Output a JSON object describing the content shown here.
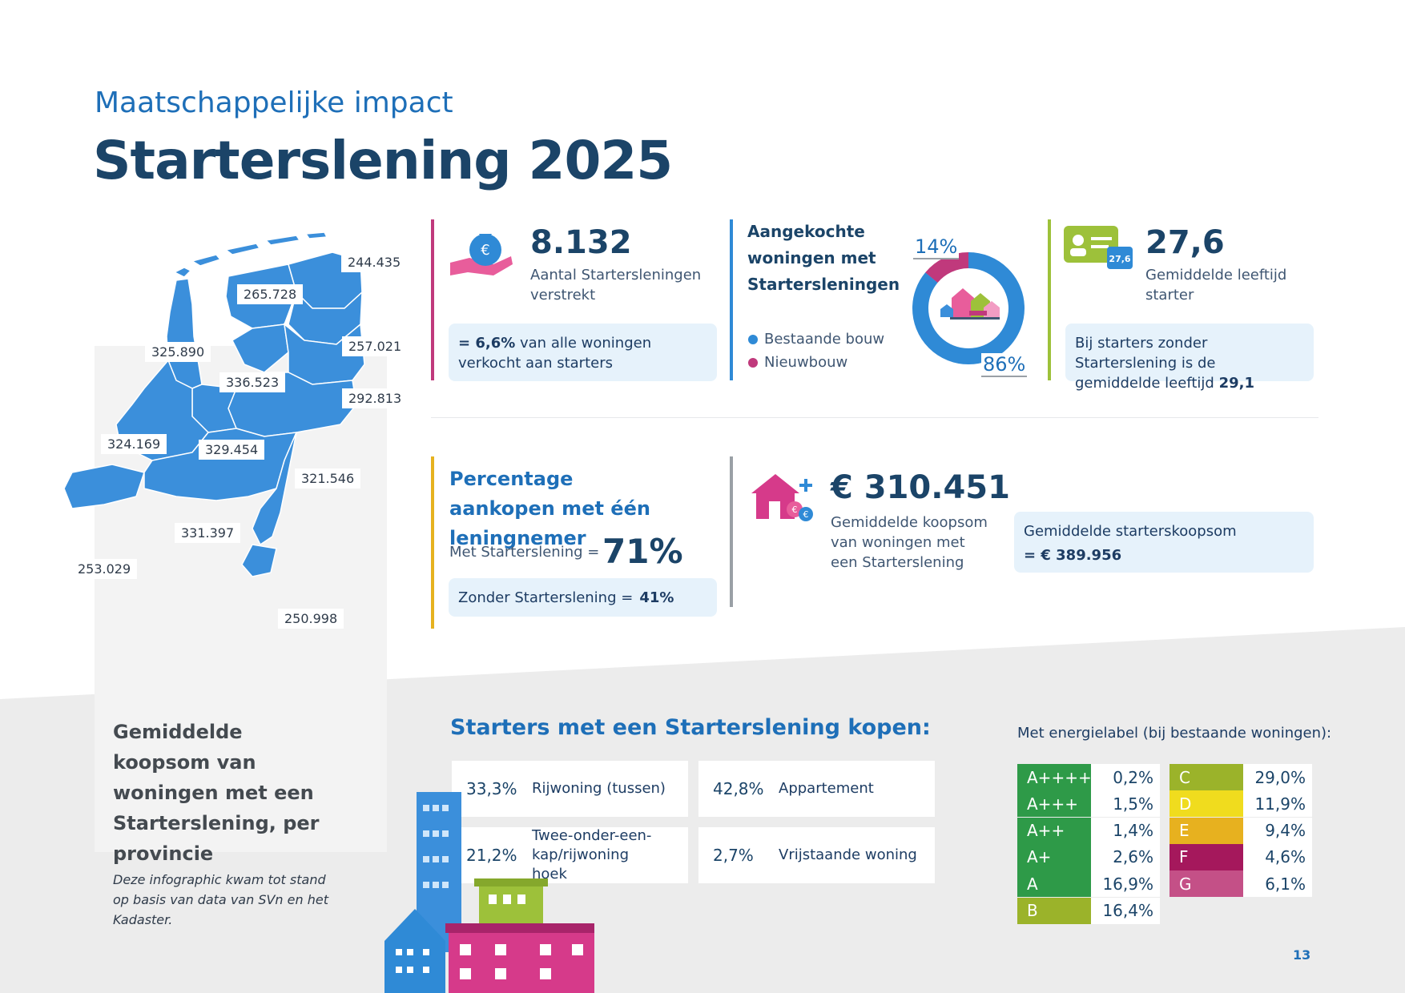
{
  "header": {
    "kicker": "Maatschappelijke impact",
    "title": "Starterslening 2025"
  },
  "map": {
    "heading": "Gemiddelde koopsom van woningen met een Starterslening, per provincie",
    "provinces": [
      {
        "value": "244.435"
      },
      {
        "value": "265.728"
      },
      {
        "value": "325.890"
      },
      {
        "value": "257.021"
      },
      {
        "value": "336.523"
      },
      {
        "value": "292.813"
      },
      {
        "value": "324.169"
      },
      {
        "value": "329.454"
      },
      {
        "value": "321.546"
      },
      {
        "value": "331.397"
      },
      {
        "value": "253.029"
      },
      {
        "value": "250.998"
      }
    ],
    "color": "#3b8fdb"
  },
  "stat_loans": {
    "value": "8.132",
    "caption": "Aantal Startersleningen verstrekt",
    "note_bold": "= 6,6%",
    "note_rest": " van alle woningen verkocht aan starters",
    "icon": "money-bag-hand-icon",
    "accent": "#c0397c"
  },
  "stat_homes": {
    "heading": "Aangekochte woningen met Startersleningen",
    "legend": [
      {
        "label": "Bestaande bouw",
        "color": "#2f8ad6"
      },
      {
        "label": "Nieuwbouw",
        "color": "#c0397c"
      }
    ],
    "pct_new": "14%",
    "pct_existing": "86%",
    "accent": "#2f8ad6"
  },
  "chart_data": {
    "type": "pie",
    "categories": [
      "Bestaande bouw",
      "Nieuwbouw"
    ],
    "values": [
      86,
      14
    ],
    "colors": [
      "#2f8ad6",
      "#c0397c"
    ]
  },
  "stat_age": {
    "value": "27,6",
    "caption": "Gemiddelde leeftijd starter",
    "card_value": "27,6",
    "note_rest": "Bij starters zonder Starterslening is de gemiddelde leeftijd ",
    "note_bold": "29,1",
    "icon": "id-card-icon",
    "accent": "#9dc13a"
  },
  "stat_single": {
    "heading": "Percentage aankopen met één leningnemer",
    "with_label": "Met Starterslening =",
    "with_value": "71%",
    "without_label": "Zonder Starterslening =",
    "without_value": "41%",
    "accent": "#e6b21f"
  },
  "stat_price": {
    "value": "€ 310.451",
    "caption": "Gemiddelde koopsom van woningen met een Starterslening",
    "note_label": "Gemiddelde starterskoopsom",
    "note_value": "= € 389.956",
    "icon": "house-money-icon",
    "accent": "#9aa0a6"
  },
  "types": {
    "heading": "Starters met een Starterslening kopen:",
    "items": [
      {
        "pct": "33,3%",
        "label": "Rijwoning (tussen)"
      },
      {
        "pct": "42,8%",
        "label": "Appartement"
      },
      {
        "pct": "21,2%",
        "label": "Twee-onder-een-kap/rijwoning hoek"
      },
      {
        "pct": "2,7%",
        "label": "Vrijstaande woning"
      }
    ]
  },
  "energy": {
    "heading": "Met energielabel (bij bestaande woningen):",
    "left": [
      {
        "code": "A++++",
        "value": "0,2%",
        "color": "#2e9a48"
      },
      {
        "code": "A+++",
        "value": "1,5%",
        "color": "#2e9a48"
      },
      {
        "code": "A++",
        "value": "1,4%",
        "color": "#2e9a48"
      },
      {
        "code": "A+",
        "value": "2,6%",
        "color": "#2e9a48"
      },
      {
        "code": "A",
        "value": "16,9%",
        "color": "#2e9a48"
      },
      {
        "code": "B",
        "value": "16,4%",
        "color": "#9bb32a"
      }
    ],
    "right": [
      {
        "code": "C",
        "value": "29,0%",
        "color": "#9bb32a"
      },
      {
        "code": "D",
        "value": "11,9%",
        "color": "#f0dc1e"
      },
      {
        "code": "E",
        "value": "9,4%",
        "color": "#e7b11f"
      },
      {
        "code": "F",
        "value": "4,6%",
        "color": "#a5185c"
      },
      {
        "code": "G",
        "value": "6,1%",
        "color": "#c45087"
      }
    ]
  },
  "footer": {
    "source": "Deze infographic kwam tot stand op basis van data van SVn en het Kadaster.",
    "page_number": "13"
  }
}
